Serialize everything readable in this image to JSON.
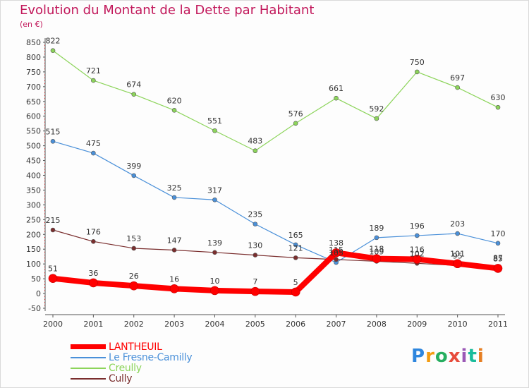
{
  "chart_data": {
    "type": "line",
    "title": "Evolution du Montant de la Dette par Habitant",
    "unit_label": "(en €)",
    "x": [
      "2000",
      "2001",
      "2002",
      "2003",
      "2004",
      "2005",
      "2006",
      "2007",
      "2008",
      "2009",
      "2010",
      "2011"
    ],
    "ylim": [
      -50,
      850
    ],
    "yticks": [
      -50,
      0,
      50,
      100,
      150,
      200,
      250,
      300,
      350,
      400,
      450,
      500,
      550,
      600,
      650,
      700,
      750,
      800,
      850
    ],
    "grid": false,
    "legend_position": "bottom-left",
    "series": [
      {
        "name": "LANTHEUIL",
        "color": "#ff0000",
        "values": [
          51,
          36,
          26,
          16,
          10,
          7,
          5,
          138,
          118,
          116,
          101,
          85
        ]
      },
      {
        "name": "Le Fresne-Camilly",
        "color": "#4a90d9",
        "values": [
          515,
          475,
          399,
          325,
          317,
          235,
          165,
          105,
          189,
          196,
          203,
          170
        ]
      },
      {
        "name": "Creully",
        "color": "#8cd45a",
        "values": [
          822,
          721,
          674,
          620,
          551,
          483,
          576,
          661,
          592,
          750,
          697,
          630
        ]
      },
      {
        "name": "Cully",
        "color": "#7a2e2e",
        "values": [
          215,
          176,
          153,
          147,
          139,
          130,
          121,
          115,
          109,
          102,
          95,
          87
        ]
      }
    ]
  },
  "logo": {
    "text": "Proxiti",
    "colors": [
      "#2e86de",
      "#f39c12",
      "#27ae60",
      "#e74c3c",
      "#9b59b6",
      "#1abc9c",
      "#e67e22"
    ]
  }
}
